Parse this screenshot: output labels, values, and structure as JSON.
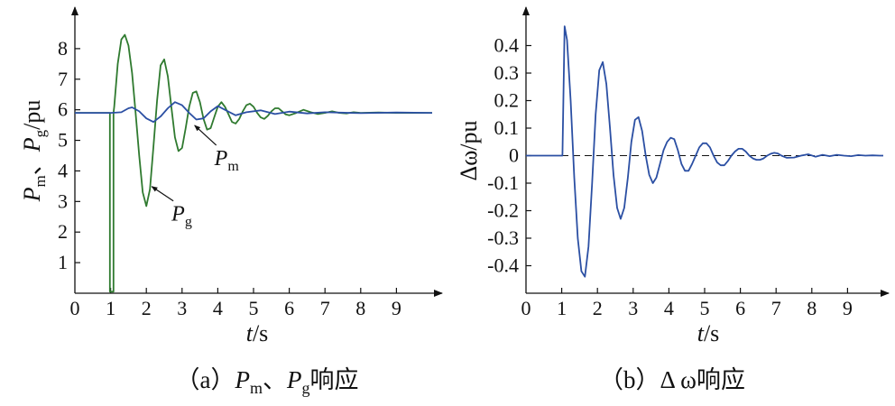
{
  "chart_data": [
    {
      "type": "line",
      "panel": "a",
      "caption": {
        "prefix": "（a）",
        "p": "P",
        "m": "m",
        "sep": "、",
        "g": "g",
        "suffix": "响应"
      },
      "xlabel": {
        "var": "t",
        "unit": "/s"
      },
      "ylabel": {
        "p1": "P",
        "s1": "m",
        "sep": "、",
        "p2": "P",
        "s2": "g",
        "unit": "/pu"
      },
      "xlim": [
        0,
        10
      ],
      "ylim": [
        0,
        9
      ],
      "xticks": [
        "0",
        "1",
        "2",
        "3",
        "4",
        "5",
        "6",
        "7",
        "8",
        "9"
      ],
      "yticks": [
        "1",
        "2",
        "3",
        "4",
        "5",
        "6",
        "7",
        "8"
      ],
      "grid": false,
      "colors": {
        "Pm": "#2b4fa3",
        "Pg": "#2f7a2f"
      },
      "annotations": [
        {
          "main": "P",
          "sub": "m",
          "target_series": "Pm",
          "point": [
            3.3,
            5.55
          ]
        },
        {
          "main": "P",
          "sub": "g",
          "target_series": "Pg",
          "point": [
            2.1,
            3.55
          ]
        }
      ],
      "series": [
        {
          "id": "Pg",
          "name": "Pg",
          "x": [
            0,
            0.98,
            0.98,
            1.02,
            1.02,
            1.08,
            1.08,
            1.1,
            1.2,
            1.3,
            1.4,
            1.5,
            1.6,
            1.7,
            1.8,
            1.9,
            2.0,
            2.1,
            2.2,
            2.3,
            2.4,
            2.5,
            2.6,
            2.7,
            2.8,
            2.9,
            3.0,
            3.1,
            3.2,
            3.3,
            3.4,
            3.5,
            3.6,
            3.7,
            3.8,
            3.9,
            4.0,
            4.1,
            4.2,
            4.3,
            4.4,
            4.5,
            4.6,
            4.7,
            4.8,
            4.9,
            5.0,
            5.1,
            5.2,
            5.3,
            5.4,
            5.5,
            5.6,
            5.7,
            5.8,
            5.9,
            6.0,
            6.2,
            6.4,
            6.6,
            6.8,
            7.0,
            7.2,
            7.4,
            7.6,
            7.8,
            8.0,
            8.5,
            9.0,
            9.5,
            10.0
          ],
          "y": [
            5.9,
            5.9,
            0.05,
            0.05,
            0.05,
            0.05,
            5.9,
            6.1,
            7.5,
            8.3,
            8.45,
            8.1,
            7.2,
            5.9,
            4.5,
            3.3,
            2.85,
            3.4,
            4.8,
            6.3,
            7.45,
            7.65,
            7.1,
            6.1,
            5.1,
            4.65,
            4.75,
            5.4,
            6.1,
            6.55,
            6.6,
            6.25,
            5.7,
            5.35,
            5.4,
            5.75,
            6.1,
            6.25,
            6.1,
            5.85,
            5.6,
            5.55,
            5.7,
            5.95,
            6.15,
            6.2,
            6.1,
            5.9,
            5.75,
            5.7,
            5.8,
            5.95,
            6.05,
            6.05,
            5.95,
            5.85,
            5.82,
            5.9,
            6.0,
            5.92,
            5.86,
            5.9,
            5.95,
            5.9,
            5.88,
            5.92,
            5.9,
            5.91,
            5.9,
            5.9,
            5.9
          ]
        },
        {
          "id": "Pm",
          "name": "Pm",
          "x": [
            0,
            1.0,
            1.3,
            1.5,
            1.6,
            1.8,
            2.0,
            2.2,
            2.4,
            2.6,
            2.8,
            3.0,
            3.2,
            3.4,
            3.6,
            3.8,
            4.0,
            4.2,
            4.5,
            4.8,
            5.2,
            5.6,
            6.0,
            6.5,
            7.0,
            8.0,
            9.0,
            10.0
          ],
          "y": [
            5.9,
            5.9,
            5.92,
            6.05,
            6.08,
            5.95,
            5.72,
            5.6,
            5.78,
            6.05,
            6.25,
            6.15,
            5.9,
            5.68,
            5.72,
            5.95,
            6.12,
            6.0,
            5.82,
            5.92,
            5.98,
            5.86,
            5.94,
            5.88,
            5.92,
            5.89,
            5.91,
            5.9
          ]
        }
      ]
    },
    {
      "type": "line",
      "panel": "b",
      "caption": {
        "prefix": "（b）",
        "body": "Δ ω响应"
      },
      "xlabel": {
        "var": "t",
        "unit": "/s"
      },
      "ylabel": {
        "text": "Δω/pu"
      },
      "xlim": [
        0,
        10
      ],
      "ylim": [
        -0.5,
        0.5
      ],
      "xticks": [
        "0",
        "1",
        "2",
        "3",
        "4",
        "5",
        "6",
        "7",
        "8",
        "9"
      ],
      "yticks": [
        "-0.4",
        "-0.3",
        "-0.2",
        "-0.1",
        "0",
        "0.1",
        "0.2",
        "0.3",
        "0.4"
      ],
      "grid": false,
      "reference_line": {
        "y": 0,
        "style": "dashed"
      },
      "colors": {
        "dw": "#2b4fa3"
      },
      "series": [
        {
          "id": "dw",
          "name": "Δω",
          "x": [
            0,
            0.98,
            1.02,
            1.08,
            1.15,
            1.25,
            1.35,
            1.45,
            1.55,
            1.65,
            1.75,
            1.85,
            1.95,
            2.05,
            2.15,
            2.25,
            2.35,
            2.45,
            2.55,
            2.65,
            2.75,
            2.85,
            2.95,
            3.05,
            3.15,
            3.25,
            3.35,
            3.45,
            3.55,
            3.65,
            3.75,
            3.85,
            3.95,
            4.05,
            4.15,
            4.25,
            4.35,
            4.45,
            4.55,
            4.65,
            4.75,
            4.85,
            4.95,
            5.05,
            5.15,
            5.25,
            5.35,
            5.45,
            5.55,
            5.65,
            5.75,
            5.85,
            5.95,
            6.05,
            6.15,
            6.25,
            6.35,
            6.45,
            6.55,
            6.65,
            6.75,
            6.85,
            6.95,
            7.05,
            7.15,
            7.3,
            7.5,
            7.7,
            7.9,
            8.1,
            8.3,
            8.5,
            8.7,
            8.9,
            9.1,
            9.3,
            9.5,
            9.7,
            9.9,
            10.0
          ],
          "y": [
            0.0,
            0.0,
            0.0,
            0.47,
            0.42,
            0.2,
            -0.08,
            -0.3,
            -0.42,
            -0.44,
            -0.33,
            -0.1,
            0.15,
            0.31,
            0.34,
            0.26,
            0.1,
            -0.07,
            -0.19,
            -0.23,
            -0.19,
            -0.08,
            0.05,
            0.13,
            0.14,
            0.09,
            0.0,
            -0.07,
            -0.1,
            -0.08,
            -0.03,
            0.02,
            0.05,
            0.065,
            0.06,
            0.02,
            -0.03,
            -0.055,
            -0.055,
            -0.03,
            0.0,
            0.03,
            0.045,
            0.045,
            0.03,
            0.0,
            -0.025,
            -0.035,
            -0.035,
            -0.02,
            0.0,
            0.015,
            0.025,
            0.025,
            0.015,
            0.0,
            -0.01,
            -0.015,
            -0.015,
            -0.01,
            0.0,
            0.007,
            0.01,
            0.008,
            0.0,
            -0.008,
            -0.007,
            0.0,
            0.005,
            -0.004,
            0.003,
            -0.002,
            0.003,
            0.0,
            -0.002,
            0.002,
            0.0,
            0.001,
            0.0,
            0.0
          ]
        }
      ]
    }
  ]
}
